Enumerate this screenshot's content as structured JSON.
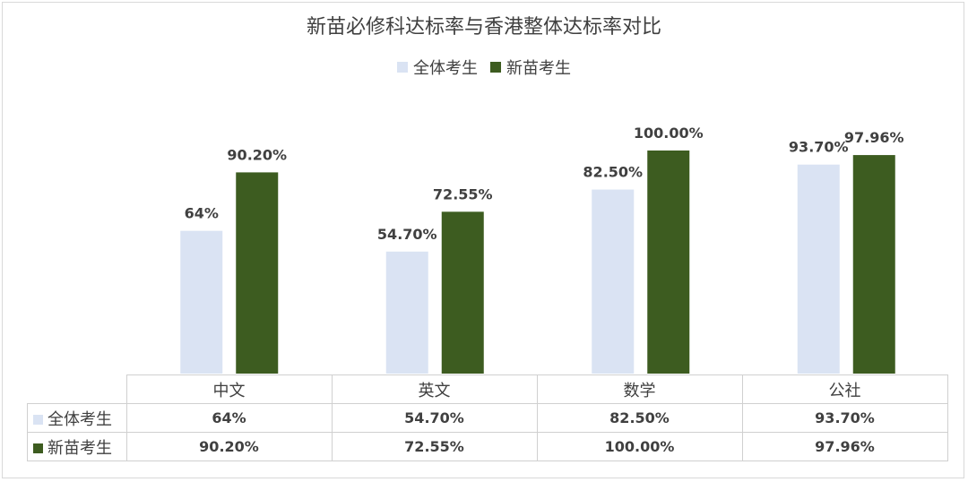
{
  "chart_data": {
    "type": "bar",
    "title": "新苗必修科达标率与香港整体达标率对比",
    "categories": [
      "中文",
      "英文",
      "数学",
      "公社"
    ],
    "series": [
      {
        "name": "全体考生",
        "values": [
          64,
          54.7,
          82.5,
          93.7
        ],
        "labels": [
          "64%",
          "54.70%",
          "82.50%",
          "93.70%"
        ],
        "color": "#dae3f3"
      },
      {
        "name": "新苗考生",
        "values": [
          90.2,
          72.55,
          100.0,
          97.96
        ],
        "labels": [
          "90.20%",
          "72.55%",
          "100.00%",
          "97.96%"
        ],
        "color": "#3d5c20"
      }
    ],
    "ylim": [
      0,
      100
    ],
    "grid": false,
    "legend": "top",
    "data_table": true
  }
}
